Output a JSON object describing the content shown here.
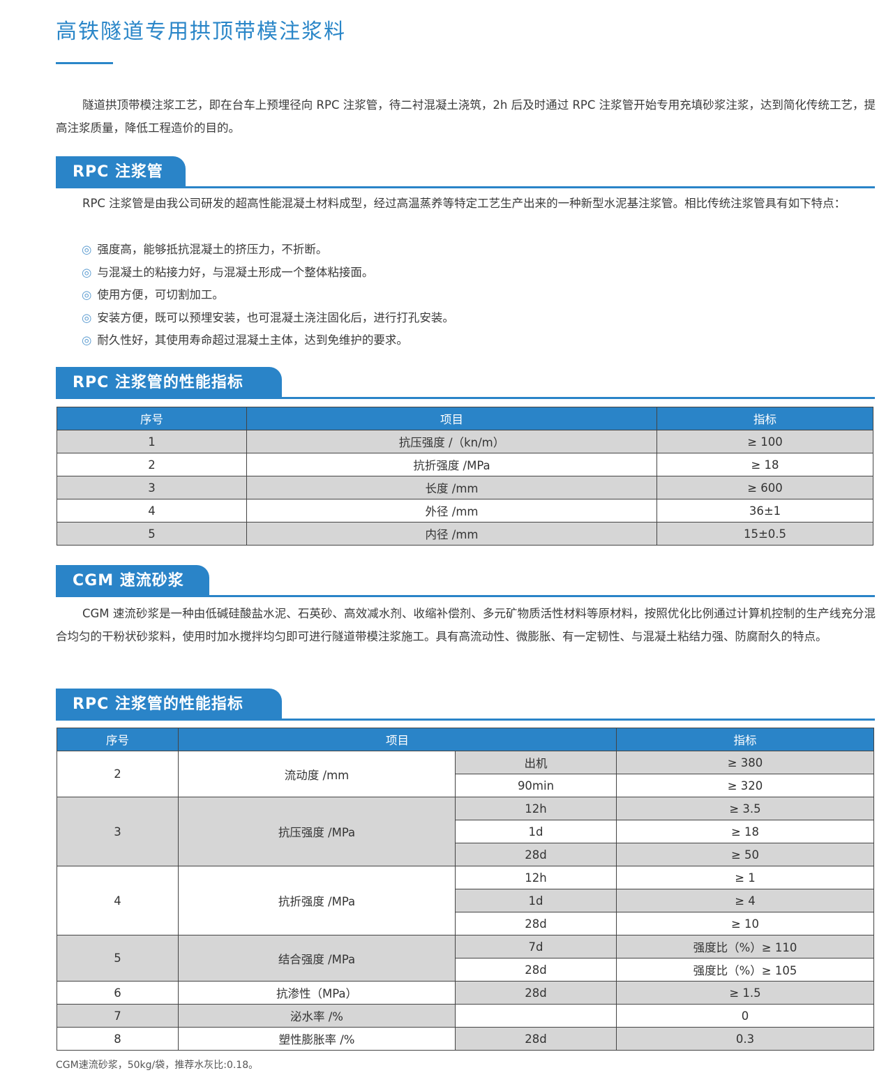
{
  "title": "高铁隧道专用拱顶带模注浆料",
  "intro": "隧道拱顶带模注浆工艺，即在台车上预埋径向 RPC 注浆管，待二衬混凝土浇筑，2h 后及时通过 RPC 注浆管开始专用充填砂浆注浆，达到简化传统工艺，提高注浆质量，降低工程造价的目的。",
  "rpc": {
    "heading": "RPC 注浆管",
    "text": "RPC 注浆管是由我公司研发的超高性能混凝土材料成型，经过高温蒸养等特定工艺生产出来的一种新型水泥基注浆管。相比传统注浆管具有如下特点：",
    "bullet_icon": "◎",
    "bullets": [
      "强度高，能够抵抗混凝土的挤压力，不折断。",
      "与混凝土的粘接力好，与混凝土形成一个整体粘接面。",
      "使用方便，可切割加工。",
      "安装方便，既可以预埋安装，也可混凝土浇注固化后，进行打孔安装。",
      "耐久性好，其使用寿命超过混凝土主体，达到免维护的要求。"
    ]
  },
  "table1": {
    "heading": "RPC 注浆管的性能指标",
    "headers": [
      "序号",
      "项目",
      "指标"
    ],
    "rows": [
      [
        "1",
        "抗压强度 /（kn/m）",
        "≥ 100"
      ],
      [
        "2",
        "抗折强度 /MPa",
        "≥ 18"
      ],
      [
        "3",
        "长度 /mm",
        "≥ 600"
      ],
      [
        "4",
        "外径 /mm",
        "36±1"
      ],
      [
        "5",
        "内径 /mm",
        "15±0.5"
      ]
    ]
  },
  "cgm": {
    "heading": "CGM 速流砂浆",
    "text": "CGM 速流砂浆是一种由低碱硅酸盐水泥、石英砂、高效减水剂、收缩补偿剂、多元矿物质活性材料等原材料，按照优化比例通过计算机控制的生产线充分混合均匀的干粉状砂浆料，使用时加水搅拌均匀即可进行隧道带模注浆施工。具有高流动性、微膨胀、有一定韧性、与混凝土粘结力强、防腐耐久的特点。"
  },
  "table2": {
    "heading": "RPC 注浆管的性能指标",
    "headers": [
      "序号",
      "项目",
      "指标"
    ],
    "groups": [
      {
        "no": "2",
        "item": "流动度 /mm",
        "subs": [
          [
            "出机",
            "≥ 380"
          ],
          [
            "90min",
            "≥ 320"
          ]
        ]
      },
      {
        "no": "3",
        "item": "抗压强度 /MPa",
        "subs": [
          [
            "12h",
            "≥ 3.5"
          ],
          [
            "1d",
            "≥ 18"
          ],
          [
            "28d",
            "≥ 50"
          ]
        ]
      },
      {
        "no": "4",
        "item": "抗折强度 /MPa",
        "subs": [
          [
            "12h",
            "≥ 1"
          ],
          [
            "1d",
            "≥ 4"
          ],
          [
            "28d",
            "≥ 10"
          ]
        ]
      },
      {
        "no": "5",
        "item": "结合强度 /MPa",
        "subs": [
          [
            "7d",
            "强度比（%）≥ 110"
          ],
          [
            "28d",
            "强度比（%）≥ 105"
          ]
        ]
      },
      {
        "no": "6",
        "item": "抗渗性（MPa）",
        "subs": [
          [
            "28d",
            "≥ 1.5"
          ]
        ]
      },
      {
        "no": "7",
        "item": "泌水率 /%",
        "subs": [
          [
            "",
            "0"
          ]
        ]
      },
      {
        "no": "8",
        "item": "塑性膨胀率 /%",
        "subs": [
          [
            "28d",
            "0.3"
          ]
        ]
      }
    ]
  },
  "footnote": "CGM速流砂浆，50kg/袋，推荐水灰比:0.18。",
  "colors": {
    "accent": "#2a84c8",
    "row_gray": "#d6d6d6"
  }
}
